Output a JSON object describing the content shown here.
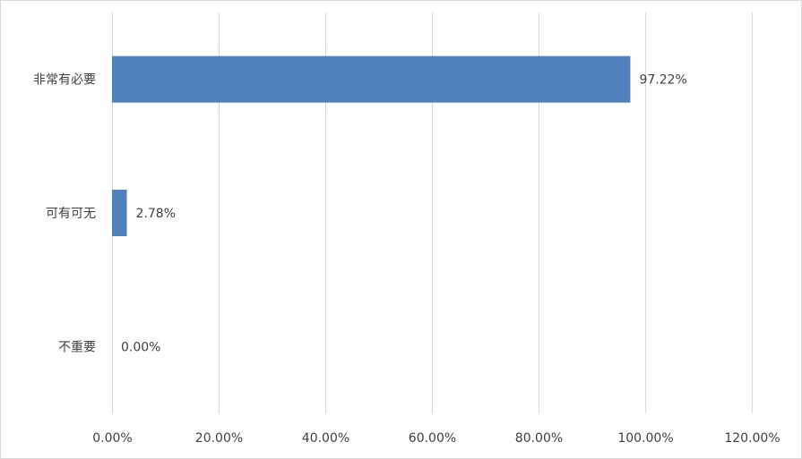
{
  "chart_data": {
    "type": "bar",
    "orientation": "horizontal",
    "categories": [
      "非常有必要",
      "可有可无",
      "不重要"
    ],
    "values": [
      97.22,
      2.78,
      0.0
    ],
    "data_labels": [
      "97.22%",
      "2.78%",
      "0.00%"
    ],
    "xlim": [
      0,
      120
    ],
    "x_ticks": [
      0,
      20,
      40,
      60,
      80,
      100,
      120
    ],
    "x_tick_labels": [
      "0.00%",
      "20.00%",
      "40.00%",
      "60.00%",
      "80.00%",
      "100.00%",
      "120.00%"
    ],
    "title": "",
    "xlabel": "",
    "ylabel": "",
    "grid": true,
    "legend": false,
    "bar_color": "#4f81bd"
  }
}
